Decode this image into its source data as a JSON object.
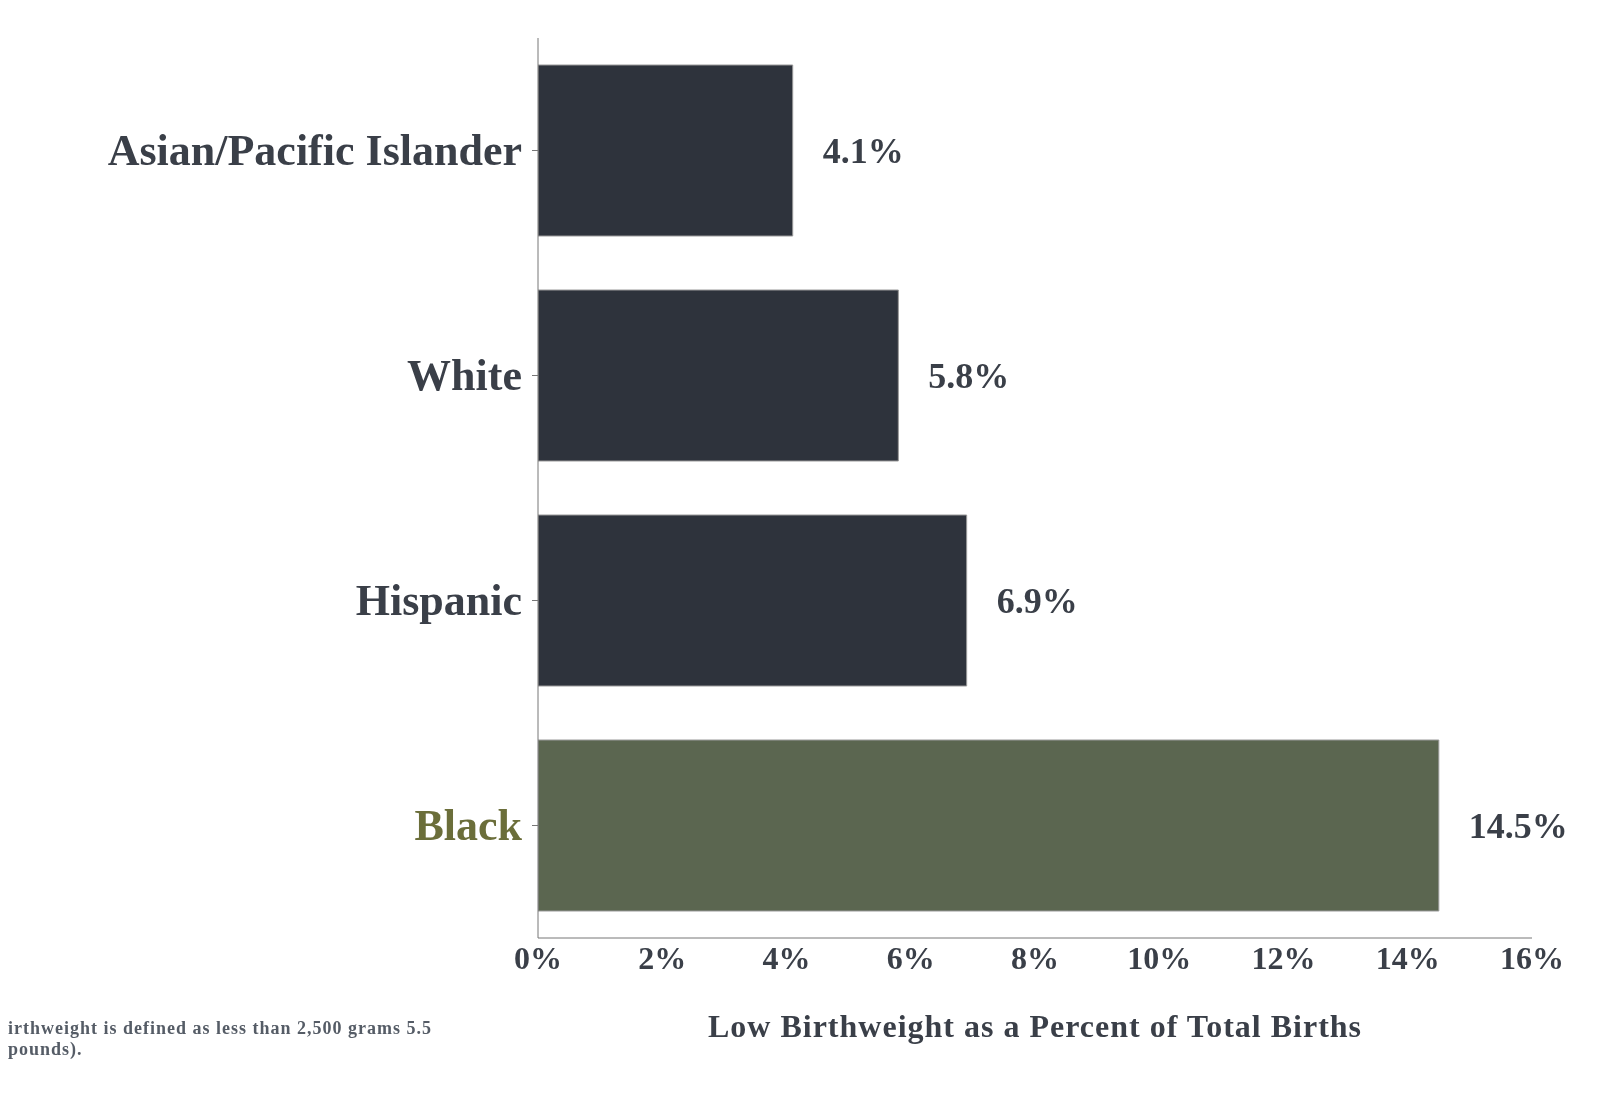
{
  "chart_data": {
    "type": "bar",
    "orientation": "horizontal",
    "categories": [
      "Asian/Pacific Islander",
      "White",
      "Hispanic",
      "Black"
    ],
    "values": [
      4.1,
      5.8,
      6.9,
      14.5
    ],
    "colors": [
      "#2e333c",
      "#2e333c",
      "#2e333c",
      "#5b6650"
    ],
    "value_labels": [
      "4.1%",
      "5.8%",
      "6.9%",
      "14.5%"
    ],
    "xlabel": "Low Birthweight as a Percent of Total Births",
    "xlim": [
      0,
      16
    ],
    "xticks": [
      {
        "value": 0,
        "label": "0%"
      },
      {
        "value": 2,
        "label": "2%"
      },
      {
        "value": 4,
        "label": "4%"
      },
      {
        "value": 6,
        "label": "6%"
      },
      {
        "value": 8,
        "label": "8%"
      },
      {
        "value": 10,
        "label": "10%"
      },
      {
        "value": 12,
        "label": "12%"
      },
      {
        "value": 14,
        "label": "14%"
      },
      {
        "value": 16,
        "label": "16%"
      }
    ],
    "grid": false,
    "legend": false,
    "annotations": [
      "irthweight is defined as less than 2,500 grams 5.5 pounds)."
    ]
  }
}
